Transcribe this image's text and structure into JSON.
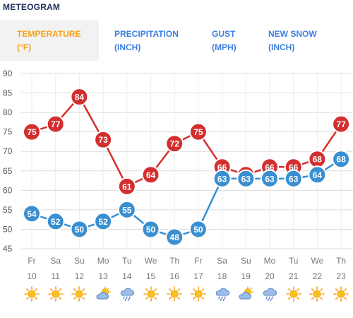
{
  "header": {
    "title": "METEOGRAM"
  },
  "tabs": [
    {
      "line1": "TEMPERATURE",
      "line2": "(°F)",
      "active": true
    },
    {
      "line1": "PRECIPITATION",
      "line2": "(INCH)",
      "active": false
    },
    {
      "line1": "GUST",
      "line2": "(MPH)",
      "active": false
    },
    {
      "line1": "NEW SNOW",
      "line2": "(INCH)",
      "active": false
    }
  ],
  "colors": {
    "active_tab": "#f5a31b",
    "inactive_tab": "#3d7fe0",
    "high_series": "#d32f2f",
    "low_series": "#3a8fd0",
    "grid": "#dcdcdc",
    "axis_text": "#555555",
    "day_text": "#777777"
  },
  "chart_data": {
    "type": "line",
    "ylim": [
      45,
      90
    ],
    "yticks": [
      45,
      50,
      55,
      60,
      65,
      70,
      75,
      80,
      85,
      90
    ],
    "categories": [
      "Fr 10",
      "Sa 11",
      "Su 12",
      "Mo 13",
      "Tu 14",
      "We 15",
      "Th 16",
      "Fr 17",
      "Sa 18",
      "Su 19",
      "Mo 20",
      "Tu 21",
      "We 22",
      "Th 23"
    ],
    "days": [
      "Fr",
      "Sa",
      "Su",
      "Mo",
      "Tu",
      "We",
      "Th",
      "Fr",
      "Sa",
      "Su",
      "Mo",
      "Tu",
      "We",
      "Th"
    ],
    "dates": [
      "10",
      "11",
      "12",
      "13",
      "14",
      "15",
      "16",
      "17",
      "18",
      "19",
      "20",
      "21",
      "22",
      "23"
    ],
    "series": [
      {
        "values": [
          75,
          77,
          84,
          73,
          61,
          64,
          72,
          75,
          66,
          64,
          66,
          66,
          68,
          77
        ]
      },
      {
        "values": [
          54,
          52,
          50,
          52,
          55,
          50,
          48,
          50,
          63,
          63,
          63,
          63,
          64,
          68
        ]
      }
    ],
    "weather_icons": [
      "sun-icon",
      "sun-icon",
      "sun-icon",
      "partly-cloudy-icon",
      "rain-icon",
      "sun-icon",
      "sun-icon",
      "sun-icon",
      "rain-icon",
      "partly-cloudy-icon",
      "rain-icon",
      "sun-icon",
      "sun-icon",
      "sun-icon"
    ]
  }
}
